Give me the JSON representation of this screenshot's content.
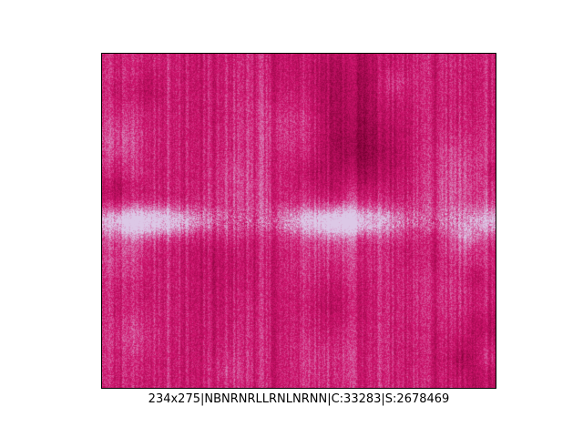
{
  "figure": {
    "caption": "234x275|NBNRNRLLRNLNRNN|C:33283|S:2678469",
    "image": {
      "grid_columns": 234,
      "grid_rows": 275,
      "base_color": "#d0156e",
      "highlight_color": "#dcc8e6"
    }
  }
}
